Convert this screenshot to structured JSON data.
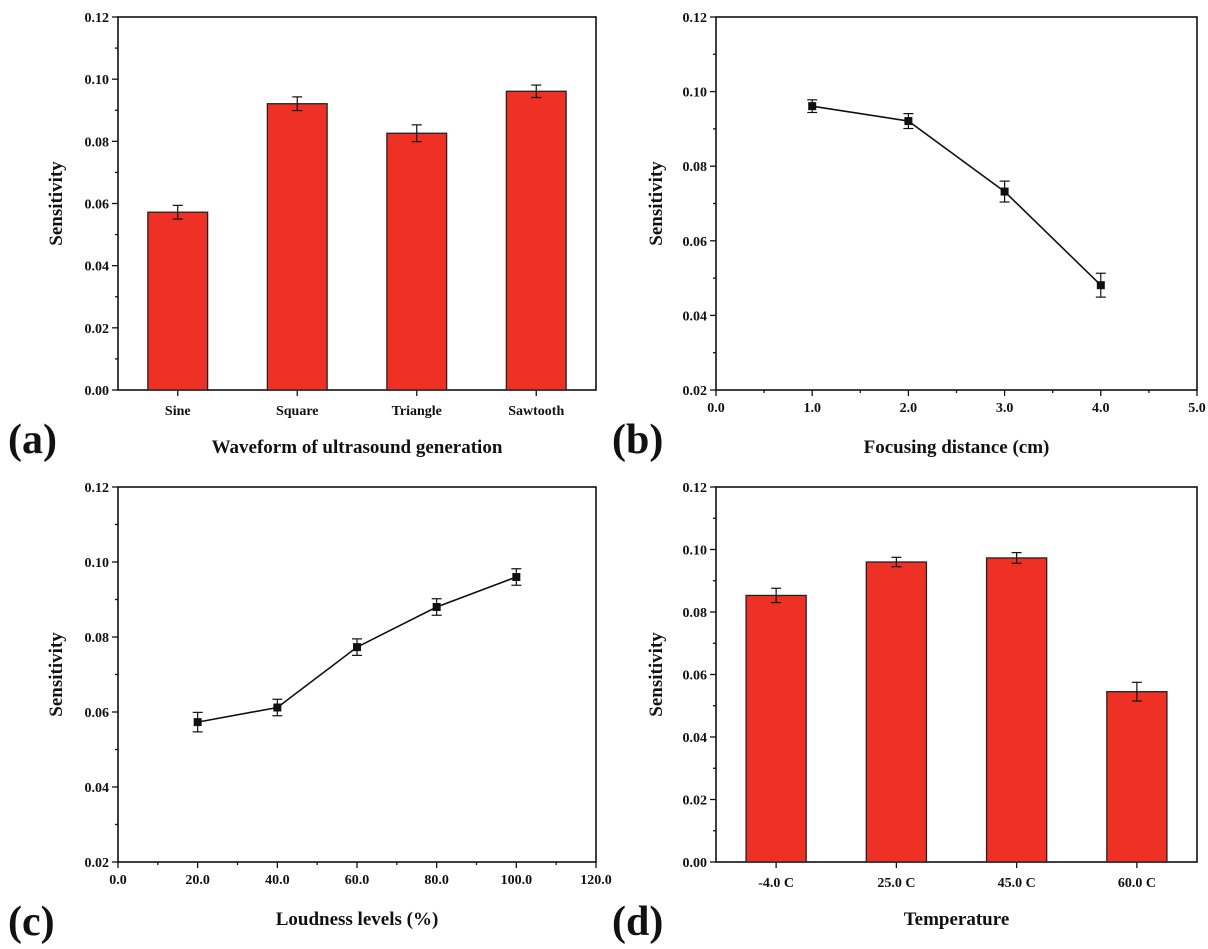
{
  "chart_data": [
    {
      "panel": "(a)",
      "type": "bar",
      "categories": [
        "Sine",
        "Square",
        "Triangle",
        "Sawtooth"
      ],
      "values": [
        0.0572,
        0.0921,
        0.0826,
        0.0961
      ],
      "errors": [
        0.0022,
        0.0022,
        0.0027,
        0.002
      ],
      "color": "#ee3124",
      "xlabel": "Waveform of ultrasound generation",
      "ylabel": "Sensitivity",
      "ylim": [
        0.0,
        0.12
      ],
      "yticks": [
        0.0,
        0.02,
        0.04,
        0.06,
        0.08,
        0.1,
        0.12
      ],
      "ytick_labels": [
        "0.00",
        "0.02",
        "0.04",
        "0.06",
        "0.08",
        "0.10",
        "0.12"
      ]
    },
    {
      "panel": "(b)",
      "type": "line",
      "x": [
        1.0,
        2.0,
        3.0,
        4.0
      ],
      "y": [
        0.0961,
        0.0921,
        0.0732,
        0.0481
      ],
      "errors": [
        0.0017,
        0.002,
        0.0028,
        0.0032
      ],
      "xlabel": "Focusing distance (cm)",
      "ylabel": "Sensitivity",
      "xlim": [
        0.0,
        5.0
      ],
      "ylim": [
        0.02,
        0.12
      ],
      "xticks": [
        0.0,
        1.0,
        2.0,
        3.0,
        4.0,
        5.0
      ],
      "xtick_labels": [
        "0.0",
        "1.0",
        "2.0",
        "3.0",
        "4.0",
        "5.0"
      ],
      "yticks": [
        0.02,
        0.04,
        0.06,
        0.08,
        0.1,
        0.12
      ],
      "ytick_labels": [
        "0.02",
        "0.04",
        "0.06",
        "0.08",
        "0.10",
        "0.12"
      ]
    },
    {
      "panel": "(c)",
      "type": "line",
      "x": [
        20.0,
        40.0,
        60.0,
        80.0,
        100.0
      ],
      "y": [
        0.0573,
        0.0612,
        0.0773,
        0.088,
        0.096
      ],
      "errors": [
        0.0026,
        0.0022,
        0.0022,
        0.0022,
        0.0022
      ],
      "xlabel": "Loudness levels (%)",
      "ylabel": "Sensitivity",
      "xlim": [
        0.0,
        120.0
      ],
      "ylim": [
        0.02,
        0.12
      ],
      "xticks": [
        0.0,
        20.0,
        40.0,
        60.0,
        80.0,
        100.0,
        120.0
      ],
      "xtick_labels": [
        "0.0",
        "20.0",
        "40.0",
        "60.0",
        "80.0",
        "100.0",
        "120.0"
      ],
      "yticks": [
        0.02,
        0.04,
        0.06,
        0.08,
        0.1,
        0.12
      ],
      "ytick_labels": [
        "0.02",
        "0.04",
        "0.06",
        "0.08",
        "0.10",
        "0.12"
      ]
    },
    {
      "panel": "(d)",
      "type": "bar",
      "categories": [
        "-4.0 C",
        "25.0 C",
        "45.0 C",
        "60.0 C"
      ],
      "values": [
        0.0853,
        0.096,
        0.0973,
        0.0545
      ],
      "errors": [
        0.0023,
        0.0015,
        0.0017,
        0.003
      ],
      "color": "#ee3124",
      "xlabel": "Temperature",
      "ylabel": "Sensitivity",
      "ylim": [
        0.0,
        0.12
      ],
      "yticks": [
        0.0,
        0.02,
        0.04,
        0.06,
        0.08,
        0.1,
        0.12
      ],
      "ytick_labels": [
        "0.00",
        "0.02",
        "0.04",
        "0.06",
        "0.08",
        "0.10",
        "0.12"
      ]
    }
  ]
}
